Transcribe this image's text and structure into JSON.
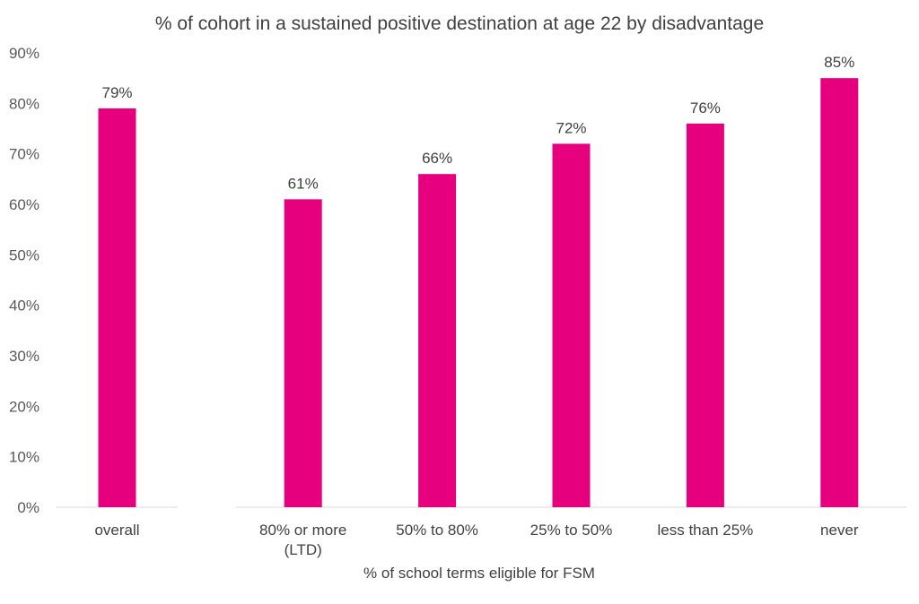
{
  "chart_data": {
    "type": "bar",
    "title": "% of cohort in a sustained positive destination at age 22 by disadvantage",
    "xlabel": "% of school terms eligible for FSM",
    "ylabel": "",
    "ylim": [
      0,
      90
    ],
    "yticks": [
      "0%",
      "10%",
      "20%",
      "30%",
      "40%",
      "50%",
      "60%",
      "70%",
      "80%",
      "90%"
    ],
    "grid": false,
    "legend": "none",
    "bar_color": "#E6007E",
    "groups": [
      {
        "categories": [
          [
            "overall"
          ]
        ],
        "values": [
          79
        ],
        "labels": [
          "79%"
        ]
      },
      {
        "categories": [
          [
            "80% or more",
            "(LTD)"
          ],
          [
            "50% to 80%"
          ],
          [
            "25% to 50%"
          ],
          [
            "less than 25%"
          ],
          [
            "never"
          ]
        ],
        "values": [
          61,
          66,
          72,
          76,
          85
        ],
        "labels": [
          "61%",
          "66%",
          "72%",
          "76%",
          "85%"
        ]
      }
    ]
  }
}
